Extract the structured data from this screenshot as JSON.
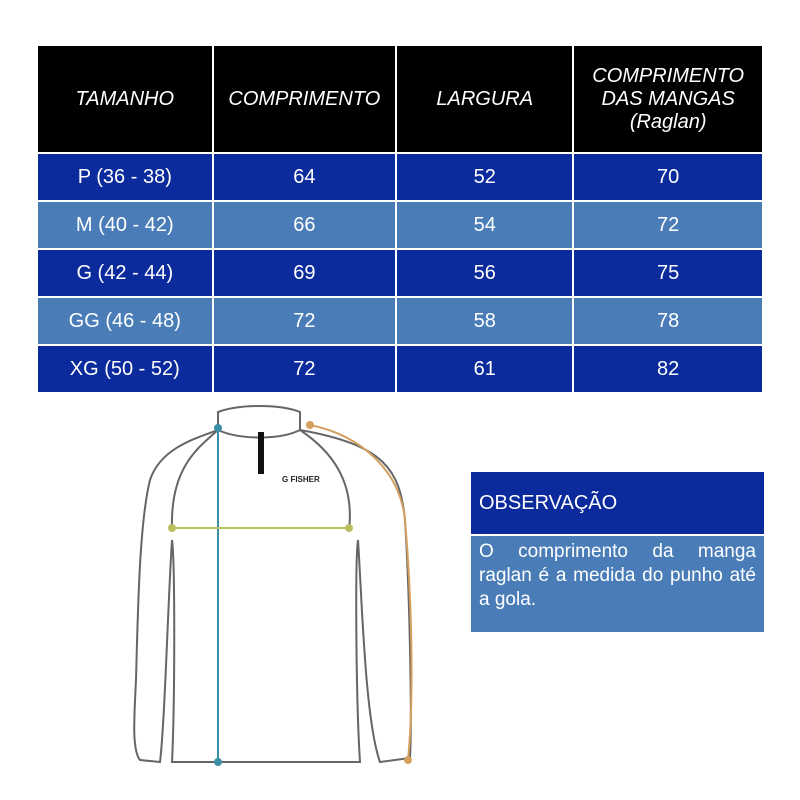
{
  "table": {
    "headers": [
      "TAMANHO",
      "COMPRIMENTO",
      "LARGURA",
      "COMPRIMENTO DAS MANGAS (Raglan)"
    ],
    "rows": [
      [
        "P (36 - 38)",
        "64",
        "52",
        "70"
      ],
      [
        "M (40 - 42)",
        "66",
        "54",
        "72"
      ],
      [
        "G (42 - 44)",
        "69",
        "56",
        "75"
      ],
      [
        "GG (46 - 48)",
        "72",
        "58",
        "78"
      ],
      [
        "XG (50 - 52)",
        "72",
        "61",
        "82"
      ]
    ]
  },
  "shirt": {
    "logo": "G FISHER"
  },
  "observation": {
    "title": "OBSERVAÇÃO",
    "text": "O comprimento da manga raglan é a medida do punho até a gola."
  },
  "colors": {
    "dark_row": "#0b2a9c",
    "light_row": "#4a7db8",
    "header": "#000000",
    "length_line": "#3a8fa8",
    "width_line": "#b8c060",
    "sleeve_line": "#d4a060"
  }
}
